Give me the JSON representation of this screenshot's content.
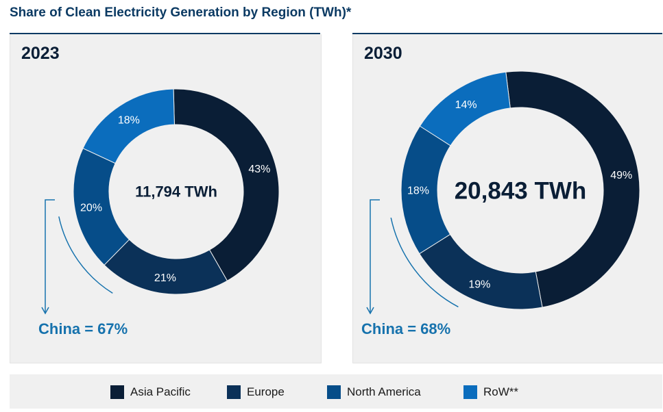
{
  "title": "Share of Clean Electricity Generation by Region (TWh)*",
  "legend": [
    {
      "label": "Asia Pacific",
      "color": "#0a1e36"
    },
    {
      "label": "Europe",
      "color": "#0b3158"
    },
    {
      "label": "North America",
      "color": "#064d89"
    },
    {
      "label": "RoW**",
      "color": "#0b6dbd"
    }
  ],
  "chart_data": [
    {
      "type": "pie",
      "title": "2023",
      "center_label": "11,794 TWh",
      "categories": [
        "Asia Pacific",
        "Europe",
        "North America",
        "RoW**"
      ],
      "values": [
        43,
        21,
        20,
        18
      ],
      "value_labels": [
        "43%",
        "21%",
        "20%",
        "18%"
      ],
      "annotation": "China = 67%"
    },
    {
      "type": "pie",
      "title": "2030",
      "center_label": "20,843 TWh",
      "categories": [
        "Asia Pacific",
        "Europe",
        "North America",
        "RoW**"
      ],
      "values": [
        49,
        19,
        18,
        14
      ],
      "value_labels": [
        "49%",
        "19%",
        "18%",
        "14%"
      ],
      "annotation": "China = 68%"
    }
  ]
}
